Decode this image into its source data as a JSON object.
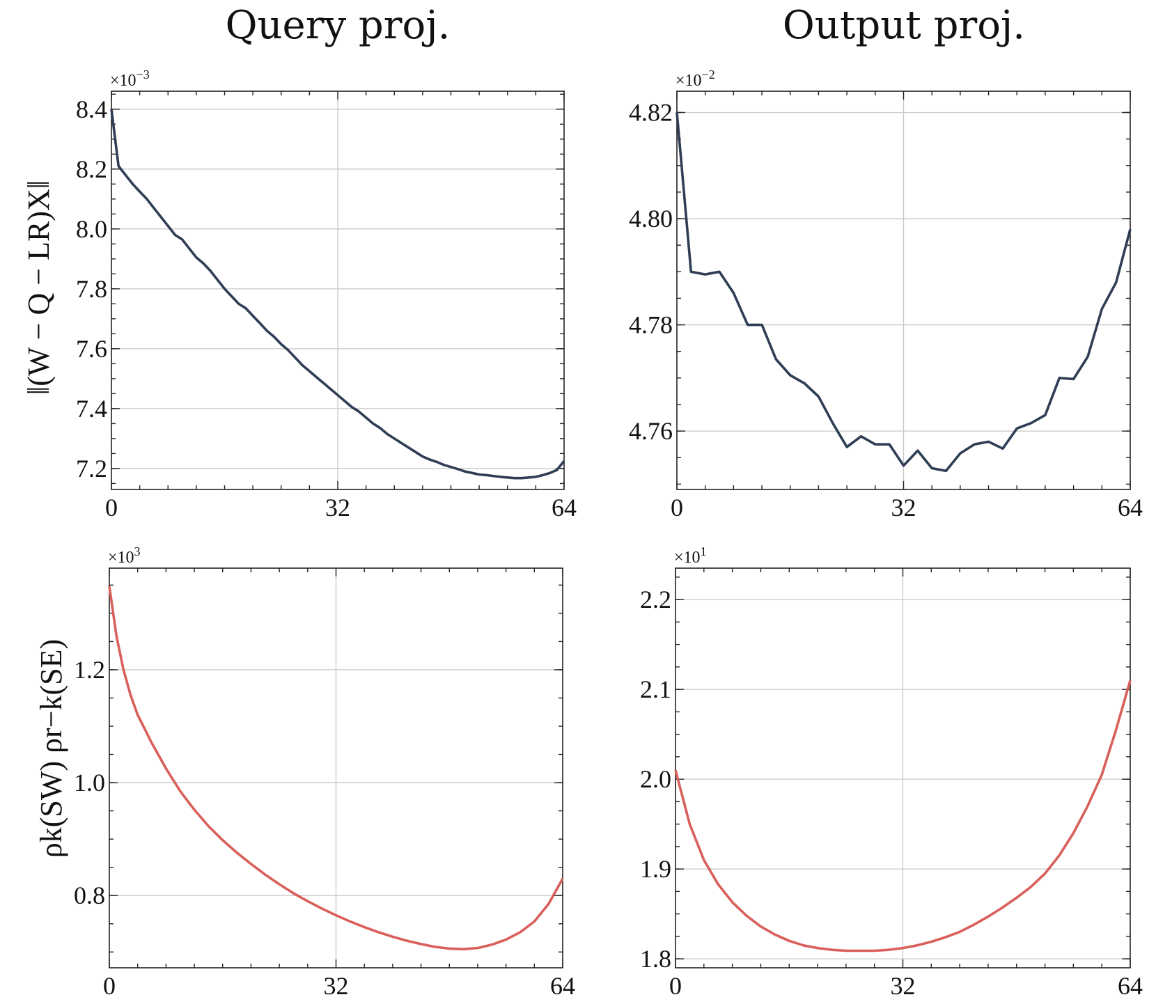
{
  "column_titles": [
    "Query proj.",
    "Output proj."
  ],
  "row_ylabels": [
    "‖(W − Q − LR)X‖",
    "ρk(SW) ρr−k(SE)"
  ],
  "colors": {
    "top_line": "#2f3d55",
    "bottom_line": "#d9605a"
  },
  "chart_data": [
    {
      "type": "line",
      "panel": "top-left",
      "column": "Query proj.",
      "ylabel": "‖(W − Q − LR)X‖",
      "multiplier": "×10−3",
      "xlim": [
        0,
        64
      ],
      "ylim": [
        7.13,
        8.46
      ],
      "x_ticks": [
        0,
        32,
        64
      ],
      "y_ticks": [
        7.2,
        7.4,
        7.6,
        7.8,
        8.0,
        8.2,
        8.4
      ],
      "grid": true,
      "x": [
        0,
        1,
        2,
        3,
        4,
        5,
        6,
        7,
        8,
        9,
        10,
        11,
        12,
        13,
        14,
        15,
        16,
        17,
        18,
        19,
        20,
        21,
        22,
        23,
        24,
        25,
        26,
        27,
        28,
        29,
        30,
        31,
        32,
        33,
        34,
        35,
        36,
        37,
        38,
        39,
        40,
        41,
        42,
        43,
        44,
        45,
        46,
        47,
        48,
        49,
        50,
        51,
        52,
        53,
        54,
        55,
        56,
        57,
        58,
        59,
        60,
        61,
        62,
        63,
        64
      ],
      "y": [
        8.4,
        8.21,
        8.18,
        8.15,
        8.125,
        8.1,
        8.07,
        8.04,
        8.01,
        7.98,
        7.965,
        7.935,
        7.905,
        7.885,
        7.86,
        7.83,
        7.8,
        7.775,
        7.75,
        7.735,
        7.71,
        7.685,
        7.66,
        7.64,
        7.615,
        7.595,
        7.57,
        7.545,
        7.525,
        7.505,
        7.485,
        7.465,
        7.445,
        7.425,
        7.405,
        7.39,
        7.37,
        7.35,
        7.335,
        7.315,
        7.3,
        7.285,
        7.27,
        7.255,
        7.24,
        7.23,
        7.222,
        7.212,
        7.205,
        7.198,
        7.19,
        7.185,
        7.18,
        7.178,
        7.175,
        7.172,
        7.17,
        7.168,
        7.168,
        7.17,
        7.172,
        7.178,
        7.185,
        7.195,
        7.225
      ]
    },
    {
      "type": "line",
      "panel": "top-right",
      "column": "Output proj.",
      "multiplier": "×10−2",
      "xlim": [
        0,
        64
      ],
      "ylim": [
        4.749,
        4.824
      ],
      "x_ticks": [
        0,
        32,
        64
      ],
      "y_ticks": [
        4.76,
        4.78,
        4.8,
        4.82
      ],
      "grid": true,
      "x": [
        0,
        2,
        4,
        6,
        8,
        10,
        12,
        14,
        16,
        18,
        20,
        22,
        24,
        26,
        28,
        30,
        32,
        34,
        36,
        38,
        40,
        42,
        44,
        46,
        48,
        50,
        52,
        54,
        56,
        58,
        60,
        62,
        64
      ],
      "y": [
        4.82,
        4.79,
        4.7895,
        4.79,
        4.786,
        4.78,
        4.78,
        4.7735,
        4.7705,
        4.769,
        4.7665,
        4.7615,
        4.757,
        4.759,
        4.7575,
        4.7575,
        4.7535,
        4.7563,
        4.753,
        4.7525,
        4.7558,
        4.7575,
        4.758,
        4.7567,
        4.7605,
        4.7615,
        4.763,
        4.77,
        4.7698,
        4.774,
        4.783,
        4.788,
        4.798
      ]
    },
    {
      "type": "line",
      "panel": "bottom-left",
      "column": "Query proj.",
      "ylabel": "ρk(SW) ρr−k(SE)",
      "multiplier": "×103",
      "xlim": [
        0,
        64
      ],
      "ylim": [
        0.672,
        1.38
      ],
      "x_ticks": [
        0,
        32,
        64
      ],
      "y_ticks": [
        0.8,
        1.0,
        1.2
      ],
      "grid": true,
      "x": [
        0,
        1,
        2,
        3,
        4,
        5,
        6,
        8,
        10,
        12,
        14,
        16,
        18,
        20,
        22,
        24,
        26,
        28,
        30,
        32,
        34,
        36,
        38,
        40,
        42,
        44,
        46,
        48,
        50,
        52,
        54,
        56,
        58,
        60,
        62,
        64
      ],
      "y": [
        1.348,
        1.26,
        1.2,
        1.155,
        1.12,
        1.095,
        1.07,
        1.025,
        0.985,
        0.952,
        0.923,
        0.898,
        0.876,
        0.856,
        0.837,
        0.82,
        0.804,
        0.79,
        0.777,
        0.765,
        0.754,
        0.744,
        0.735,
        0.727,
        0.72,
        0.714,
        0.709,
        0.706,
        0.705,
        0.707,
        0.713,
        0.722,
        0.735,
        0.754,
        0.785,
        0.83
      ]
    },
    {
      "type": "line",
      "panel": "bottom-right",
      "column": "Output proj.",
      "multiplier": "×101",
      "xlim": [
        0,
        64
      ],
      "ylim": [
        1.79,
        2.235
      ],
      "x_ticks": [
        0,
        32,
        64
      ],
      "y_ticks": [
        1.8,
        1.9,
        2.0,
        2.1,
        2.2
      ],
      "grid": true,
      "x": [
        0,
        2,
        4,
        6,
        8,
        10,
        12,
        14,
        16,
        18,
        20,
        22,
        24,
        26,
        28,
        30,
        32,
        34,
        36,
        38,
        40,
        42,
        44,
        46,
        48,
        50,
        52,
        54,
        56,
        58,
        60,
        62,
        64
      ],
      "y": [
        2.01,
        1.95,
        1.91,
        1.883,
        1.863,
        1.848,
        1.836,
        1.827,
        1.82,
        1.815,
        1.812,
        1.81,
        1.809,
        1.809,
        1.809,
        1.81,
        1.812,
        1.815,
        1.819,
        1.824,
        1.83,
        1.838,
        1.847,
        1.857,
        1.868,
        1.88,
        1.895,
        1.915,
        1.94,
        1.97,
        2.005,
        2.055,
        2.11
      ]
    }
  ]
}
